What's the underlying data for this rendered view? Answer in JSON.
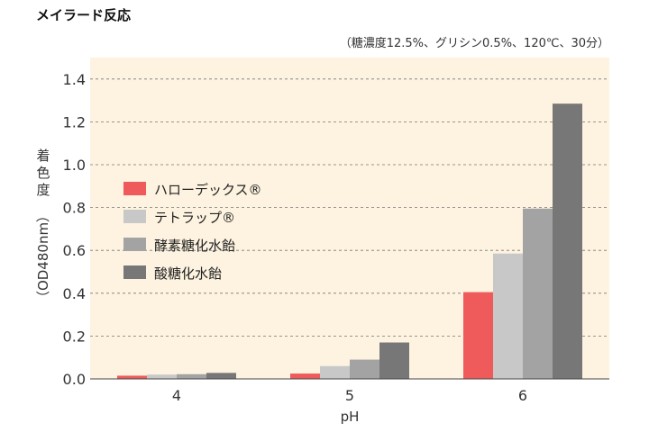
{
  "chart_data": {
    "type": "bar",
    "title": "メイラード反応",
    "subtitle": "（糖濃度12.5%、グリシン0.5%、120℃、30分）",
    "xlabel": "pH",
    "ylabel": "（OD480nm）",
    "ylabel_prefix": "着色度",
    "categories": [
      "4",
      "5",
      "6"
    ],
    "ylim": [
      0,
      1.5
    ],
    "yticks": [
      "0.0",
      "0.2",
      "0.4",
      "0.6",
      "0.8",
      "1.0",
      "1.2",
      "1.4"
    ],
    "grid": true,
    "legend_position": "left",
    "series": [
      {
        "name": "ハローデックス®",
        "color": "#ef5b5b",
        "values": [
          0.015,
          0.025,
          0.405
        ]
      },
      {
        "name": "テトラップ®",
        "color": "#c8c8c8",
        "values": [
          0.02,
          0.06,
          0.585
        ]
      },
      {
        "name": "酵素糖化水飴",
        "color": "#a3a3a3",
        "values": [
          0.022,
          0.09,
          0.795
        ]
      },
      {
        "name": "酸糖化水飴",
        "color": "#777777",
        "values": [
          0.028,
          0.17,
          1.285
        ]
      }
    ],
    "colors": {
      "plot_background": "#fdf3e0"
    }
  }
}
